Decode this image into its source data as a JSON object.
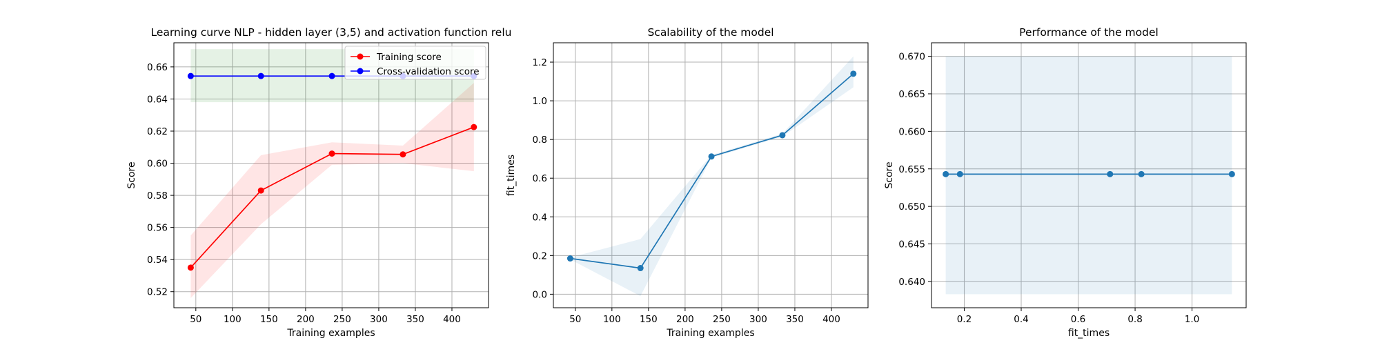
{
  "chart_data": [
    {
      "type": "line",
      "title": "Learning curve NLP - hidden layer (3,5) and activation function relu",
      "xlabel": "Training examples",
      "ylabel": "Score",
      "xlim": [
        20,
        450
      ],
      "ylim": [
        0.51,
        0.675
      ],
      "xticks": [
        50,
        100,
        150,
        200,
        250,
        300,
        350,
        400
      ],
      "yticks": [
        0.52,
        0.54,
        0.56,
        0.58,
        0.6,
        0.62,
        0.64,
        0.66
      ],
      "ytick_decimals": 2,
      "grid": true,
      "legend": "top-right",
      "x": [
        43,
        139,
        236,
        333,
        430
      ],
      "series": [
        {
          "name": "Training score",
          "color": "#ff0000",
          "fill": "#ff0000",
          "values": [
            0.535,
            0.583,
            0.606,
            0.6055,
            0.6225
          ],
          "lower": [
            0.516,
            0.562,
            0.599,
            0.6,
            0.595
          ],
          "upper": [
            0.555,
            0.605,
            0.613,
            0.611,
            0.65
          ]
        },
        {
          "name": "Cross-validation score",
          "color": "#0000ff",
          "fill": "#008000",
          "values": [
            0.6543,
            0.6543,
            0.6543,
            0.6543,
            0.6543
          ],
          "lower": [
            0.638,
            0.638,
            0.638,
            0.638,
            0.638
          ],
          "upper": [
            0.671,
            0.671,
            0.671,
            0.671,
            0.671
          ]
        }
      ]
    },
    {
      "type": "line",
      "title": "Scalability of the model",
      "xlabel": "Training examples",
      "ylabel": "fit_times",
      "xlim": [
        20,
        450
      ],
      "ylim": [
        -0.07,
        1.3
      ],
      "xticks": [
        50,
        100,
        150,
        200,
        250,
        300,
        350,
        400
      ],
      "yticks": [
        0.0,
        0.2,
        0.4,
        0.6,
        0.8,
        1.0,
        1.2
      ],
      "ytick_decimals": 1,
      "grid": true,
      "x": [
        43,
        139,
        236,
        333,
        430
      ],
      "series": [
        {
          "color": "#1f77b4",
          "fill": "#1f77b4",
          "values": [
            0.185,
            0.135,
            0.712,
            0.822,
            1.14
          ],
          "lower": [
            0.18,
            -0.01,
            0.705,
            0.815,
            1.07
          ],
          "upper": [
            0.19,
            0.285,
            0.72,
            0.83,
            1.23
          ]
        }
      ]
    },
    {
      "type": "line",
      "title": "Performance of the model",
      "xlabel": "fit_times",
      "ylabel": "Score",
      "xlim": [
        0.085,
        1.19
      ],
      "ylim": [
        0.6365,
        0.6718
      ],
      "xticks": [
        0.2,
        0.4,
        0.6,
        0.8,
        1.0
      ],
      "yticks": [
        0.64,
        0.645,
        0.65,
        0.655,
        0.66,
        0.665,
        0.67
      ],
      "ytick_decimals": 3,
      "xtick_decimals": 1,
      "grid": true,
      "x": [
        0.135,
        0.185,
        0.712,
        0.822,
        1.14
      ],
      "series": [
        {
          "color": "#1f77b4",
          "fill": "#1f77b4",
          "values": [
            0.6543,
            0.6543,
            0.6543,
            0.6543,
            0.6543
          ],
          "lower": [
            0.6383,
            0.6383,
            0.6383,
            0.6383,
            0.6383
          ],
          "upper": [
            0.67,
            0.67,
            0.67,
            0.67,
            0.67
          ]
        }
      ]
    }
  ]
}
